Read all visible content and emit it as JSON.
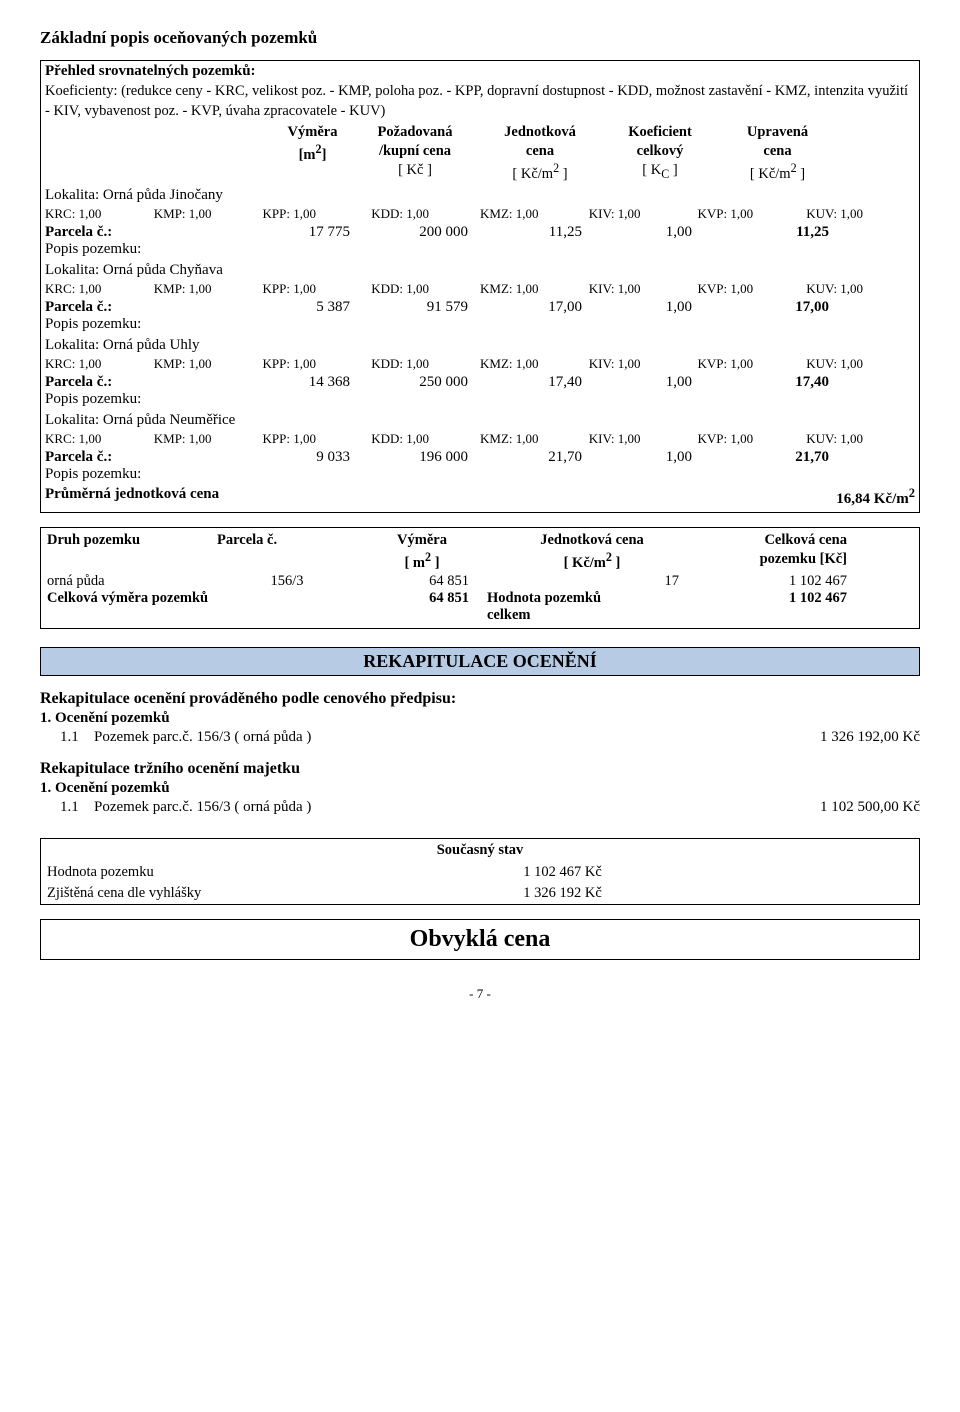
{
  "title": "Základní popis oceňovaných pozemků",
  "overview": "Přehled srovnatelných pozemků:",
  "coeffNote": "Koeficienty: (redukce ceny - KRC, velikost poz. - KMP, poloha poz. - KPP, dopravní dostupnost - KDD, možnost zastavění - KMZ, intenzita využití - KIV, vybavenost poz. - KVP, úvaha zpracovatele - KUV)",
  "headers": {
    "c1a": "Výměra",
    "c1b": "[m",
    "c1c": "]",
    "c2a": "Požadovaná",
    "c2b": "/kupní cena",
    "c2c": "[ Kč ]",
    "c3a": "Jednotková",
    "c3b": "cena",
    "c3c": "[ Kč/m",
    "c3d": " ]",
    "c4a": "Koeficient",
    "c4b": "celkový",
    "c4c": "[ K",
    "c4cs": "C",
    "c4d": " ]",
    "c5a": "Upravená",
    "c5b": "cena",
    "c5c": "[ Kč/m",
    "c5d": " ]"
  },
  "localities": [
    {
      "loc": "Lokalita: Orná půda Jinočany",
      "coefs": [
        "KRC: 1,00",
        "KMP: 1,00",
        "KPP: 1,00",
        "KDD: 1,00",
        "KMZ: 1,00",
        "KIV: 1,00",
        "KVP: 1,00",
        "KUV: 1,00"
      ],
      "parcel": "Parcela č.:",
      "v1": "17 775",
      "v2": "200 000",
      "v3": "11,25",
      "v4": "1,00",
      "v5": "11,25",
      "desc": "Popis pozemku:"
    },
    {
      "loc": "Lokalita: Orná půda Chyňava",
      "coefs": [
        "KRC: 1,00",
        "KMP: 1,00",
        "KPP: 1,00",
        "KDD: 1,00",
        "KMZ: 1,00",
        "KIV: 1,00",
        "KVP: 1,00",
        "KUV: 1,00"
      ],
      "parcel": "Parcela č.:",
      "v1": "5 387",
      "v2": "91 579",
      "v3": "17,00",
      "v4": "1,00",
      "v5": "17,00",
      "desc": "Popis pozemku:"
    },
    {
      "loc": "Lokalita: Orná půda Uhly",
      "coefs": [
        "KRC: 1,00",
        "KMP: 1,00",
        "KPP: 1,00",
        "KDD: 1,00",
        "KMZ: 1,00",
        "KIV: 1,00",
        "KVP: 1,00",
        "KUV: 1,00"
      ],
      "parcel": "Parcela č.:",
      "v1": "14 368",
      "v2": "250 000",
      "v3": "17,40",
      "v4": "1,00",
      "v5": "17,40",
      "desc": "Popis pozemku:"
    },
    {
      "loc": "Lokalita: Orná půda Neuměřice",
      "coefs": [
        "KRC: 1,00",
        "KMP: 1,00",
        "KPP: 1,00",
        "KDD: 1,00",
        "KMZ: 1,00",
        "KIV: 1,00",
        "KVP: 1,00",
        "KUV: 1,00"
      ],
      "parcel": "Parcela č.:",
      "v1": "9 033",
      "v2": "196 000",
      "v3": "21,70",
      "v4": "1,00",
      "v5": "21,70",
      "desc": "Popis pozemku:"
    }
  ],
  "avgLabel": "Průměrná jednotková cena",
  "avgValue": "16,84 Kč/m",
  "table2": {
    "h": [
      "Druh pozemku",
      "Parcela č.",
      "Výměra",
      "Jednotková cena",
      "Celková cena"
    ],
    "h2c": "[ m",
    "h2c2": " ]",
    "h2d": "[ Kč/m",
    "h2d2": " ]",
    "h2e": "pozemku [Kč]",
    "r1": [
      "orná půda",
      "156/3",
      "64 851",
      "17",
      "1 102 467"
    ],
    "r2l": "Celková výměra pozemků",
    "r2v": "64 851",
    "r2l2": "Hodnota pozemků",
    "r2l3": "celkem",
    "r2v2": "1 102 467"
  },
  "recapTitle": "REKAPITULACE OCENĚNÍ",
  "recap1": "Rekapitulace ocenění prováděného podle cenového předpisu:",
  "sub1": "1. Ocenění pozemků",
  "item1": {
    "idx": "1.1",
    "desc": "Pozemek parc.č. 156/3 ( orná půda )",
    "price": "1 326 192,00 Kč"
  },
  "recap2": "Rekapitulace tržního ocenění majetku",
  "sub2": "1. Ocenění pozemků",
  "item2": {
    "idx": "1.1",
    "desc": "Pozemek parc.č. 156/3 ( orná půda )",
    "price": "1 102 500,00 Kč"
  },
  "stateTitle": "Současný stav",
  "state": [
    {
      "l": "Hodnota pozemku",
      "r": "1 102 467 Kč"
    },
    {
      "l": "Zjištěná cena dle vyhlášky",
      "r": "1 326 192 Kč"
    }
  ],
  "finalTitle": "Obvyklá cena",
  "pageNum": "- 7 -"
}
